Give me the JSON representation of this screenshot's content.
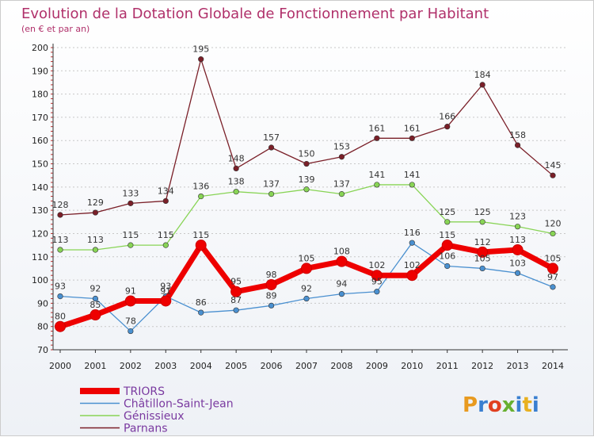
{
  "chart_data": {
    "type": "line",
    "title": "Evolution de la Dotation Globale de Fonctionnement par Habitant",
    "subtitle": "(en € et par an)",
    "xlabel": "",
    "ylabel": "",
    "ylim": [
      70,
      200
    ],
    "yticks": [
      70,
      80,
      90,
      100,
      110,
      120,
      130,
      140,
      150,
      160,
      170,
      180,
      190,
      200
    ],
    "categories": [
      "2000",
      "2001",
      "2002",
      "2003",
      "2004",
      "2005",
      "2006",
      "2007",
      "2008",
      "2009",
      "2010",
      "2011",
      "2012",
      "2013",
      "2014"
    ],
    "grid": "horizontal dotted",
    "legend": "bottom-left",
    "series": [
      {
        "name": "Parnans",
        "color": "#7a1f28",
        "values": [
          128,
          129,
          133,
          134,
          195,
          148,
          157,
          150,
          153,
          161,
          161,
          166,
          184,
          158,
          145
        ]
      },
      {
        "name": "Génissieux",
        "color": "#88d455",
        "values": [
          113,
          113,
          115,
          115,
          136,
          138,
          137,
          139,
          137,
          141,
          141,
          125,
          125,
          123,
          120
        ]
      },
      {
        "name": "Châtillon-Saint-Jean",
        "color": "#4a90d0",
        "values": [
          93,
          92,
          78,
          93,
          86,
          87,
          89,
          92,
          94,
          95,
          116,
          106,
          105,
          103,
          97
        ]
      },
      {
        "name": "TRIORS",
        "color": "#ee0000",
        "values": [
          80,
          85,
          91,
          91,
          115,
          95,
          98,
          105,
          108,
          102,
          102,
          115,
          112,
          113,
          105
        ]
      }
    ]
  },
  "branding": {
    "logo_text": "Proxiti"
  }
}
